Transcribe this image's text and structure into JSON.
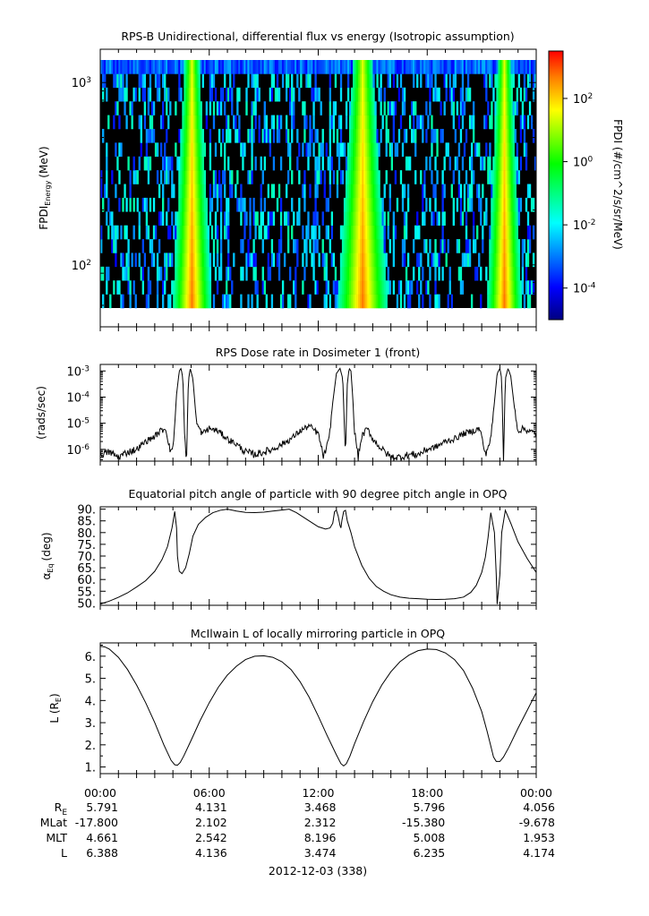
{
  "chart_data": [
    {
      "type": "heatmap",
      "title": "RPS-B  Unidirectional, differential flux vs energy (Isotropic assumption)",
      "ylabel": "FPDI",
      "ylabel_sub": "Energy",
      "ylabel_unit": "(MeV)",
      "yscale": "log",
      "ytick_labels": [
        {
          "value": 100,
          "label": "10",
          "exp": "2"
        },
        {
          "value": 1000,
          "label": "10",
          "exp": "3"
        }
      ],
      "energy_range_mev": [
        58,
        1330
      ],
      "colorbar": {
        "label": "FPDI (#/cm^2/s/sr/MeV)",
        "scale": "log",
        "range": [
          -5,
          3.5
        ],
        "ticks": [
          {
            "value": -4,
            "label": "10",
            "exp": "-4"
          },
          {
            "value": -2,
            "label": "10",
            "exp": "-2"
          },
          {
            "value": 0,
            "label": "10",
            "exp": "0"
          },
          {
            "value": 2,
            "label": "10",
            "exp": "2"
          }
        ]
      },
      "high_flux_bands_hours": [
        [
          4.0,
          6.1
        ],
        [
          13.1,
          15.8
        ],
        [
          21.3,
          23.2
        ]
      ],
      "colors": {
        "min": "#000080",
        "blue": "#0000ff",
        "cyan": "#00ffff",
        "green": "#00ff00",
        "yellow": "#ffff00",
        "max": "#ff0000",
        "background": "#000000"
      }
    },
    {
      "type": "line",
      "title": "RPS  Dose rate in Dosimeter 1 (front)",
      "ylabel": "(rads/sec)",
      "yscale": "log",
      "ylim_log10": [
        -6.45,
        -2.75
      ],
      "ytick_labels": [
        {
          "value": -6,
          "label": "10",
          "exp": "-6"
        },
        {
          "value": -5,
          "label": "10",
          "exp": "-5"
        },
        {
          "value": -4,
          "label": "10",
          "exp": "-4"
        },
        {
          "value": -3,
          "label": "10",
          "exp": "-3"
        }
      ],
      "x_hours": [
        0,
        0.5,
        1.0,
        1.5,
        2.0,
        2.5,
        3.0,
        3.3,
        3.6,
        3.9,
        4.05,
        4.2,
        4.35,
        4.45,
        4.55,
        4.65,
        4.75,
        4.85,
        4.95,
        5.1,
        5.3,
        5.6,
        6.0,
        6.5,
        7.0,
        7.5,
        8.0,
        8.5,
        9.0,
        9.5,
        10.0,
        10.5,
        11.0,
        11.5,
        12.0,
        12.3,
        12.6,
        12.8,
        13.0,
        13.2,
        13.35,
        13.5,
        13.6,
        13.7,
        13.8,
        13.9,
        14.0,
        14.2,
        14.4,
        14.7,
        15.0,
        15.5,
        16.0,
        16.5,
        17.0,
        17.5,
        18.0,
        18.5,
        19.0,
        19.5,
        20.0,
        20.5,
        20.9,
        21.2,
        21.5,
        21.7,
        21.85,
        22.0,
        22.1,
        22.2,
        22.3,
        22.45,
        22.6,
        22.8,
        23.0,
        23.3,
        23.6,
        24.0
      ],
      "y_log10": [
        -6.2,
        -6.1,
        -6.3,
        -6.1,
        -6.0,
        -5.7,
        -5.5,
        -5.3,
        -5.2,
        -6.2,
        -5.6,
        -3.9,
        -3.0,
        -2.9,
        -3.3,
        -5.6,
        -6.4,
        -3.4,
        -2.9,
        -3.3,
        -5.0,
        -5.4,
        -5.2,
        -5.3,
        -5.6,
        -5.8,
        -6.1,
        -6.2,
        -6.1,
        -6.0,
        -5.8,
        -5.6,
        -5.3,
        -5.1,
        -5.4,
        -6.3,
        -5.6,
        -4.2,
        -3.1,
        -2.9,
        -3.3,
        -6.3,
        -3.5,
        -2.9,
        -3.0,
        -4.0,
        -5.3,
        -6.3,
        -5.5,
        -5.2,
        -5.6,
        -6.0,
        -6.3,
        -6.3,
        -6.2,
        -6.2,
        -6.0,
        -5.9,
        -5.7,
        -5.6,
        -5.4,
        -5.3,
        -5.2,
        -6.2,
        -5.6,
        -4.2,
        -3.1,
        -2.9,
        -3.3,
        -6.4,
        -3.3,
        -2.9,
        -3.2,
        -4.4,
        -5.3,
        -5.2,
        -5.3,
        -5.4
      ],
      "noise_log10": 0.12
    },
    {
      "type": "line",
      "title": "Equatorial pitch angle of particle with 90 degree pitch angle in OPQ",
      "ylabel": "α",
      "ylabel_sub": "Eq",
      "ylabel_unit": "(deg)",
      "ylim": [
        49,
        91
      ],
      "yticks": [
        50,
        55,
        60,
        65,
        70,
        75,
        80,
        85,
        90
      ],
      "ytick_labels": [
        "50.",
        "55.",
        "60.",
        "65.",
        "70.",
        "75.",
        "80.",
        "85.",
        "90."
      ],
      "x_hours": [
        0,
        0.5,
        1.0,
        1.5,
        2.0,
        2.5,
        3.0,
        3.4,
        3.7,
        3.95,
        4.1,
        4.2,
        4.25,
        4.35,
        4.5,
        4.7,
        4.9,
        5.1,
        5.4,
        5.8,
        6.2,
        6.6,
        7.0,
        7.5,
        8.0,
        8.5,
        9.0,
        9.5,
        10.0,
        10.4,
        10.8,
        11.2,
        11.6,
        12.0,
        12.4,
        12.65,
        12.8,
        12.9,
        13.0,
        13.1,
        13.2,
        13.25,
        13.3,
        13.4,
        13.5,
        13.6,
        13.8,
        14.0,
        14.4,
        14.8,
        15.2,
        15.6,
        16.0,
        16.5,
        17.0,
        17.5,
        18.0,
        18.5,
        19.0,
        19.5,
        20.0,
        20.4,
        20.7,
        21.0,
        21.2,
        21.35,
        21.5,
        21.7,
        21.8,
        21.85,
        22.0,
        22.1,
        22.3,
        22.6,
        23.0,
        23.5,
        24.0
      ],
      "y": [
        49.5,
        50.8,
        52.4,
        54.3,
        56.8,
        59.5,
        63.5,
        68.5,
        74.0,
        82.0,
        89.0,
        82.0,
        70.0,
        63.5,
        62.5,
        65.0,
        71.0,
        78.5,
        83.5,
        86.5,
        88.5,
        89.5,
        90.0,
        89.2,
        88.6,
        88.5,
        88.7,
        89.2,
        89.6,
        90.0,
        88.5,
        86.5,
        84.5,
        82.5,
        81.5,
        82.0,
        84.0,
        89.0,
        89.5,
        87.0,
        83.0,
        82.0,
        85.0,
        89.0,
        89.5,
        85.0,
        80.0,
        74.0,
        66.0,
        60.5,
        57.0,
        55.0,
        53.5,
        52.5,
        52.0,
        51.8,
        51.6,
        51.5,
        51.6,
        51.8,
        52.5,
        54.5,
        57.5,
        63.0,
        69.5,
        78.0,
        88.5,
        80.0,
        62.0,
        49.5,
        62.0,
        80.0,
        89.5,
        84.0,
        76.0,
        69.0,
        63.0
      ]
    },
    {
      "type": "line",
      "title": "McIlwain L of locally mirroring particle in OPQ",
      "ylabel": "L (R",
      "ylabel_sub": "E",
      "ylabel_close": ")",
      "ylim": [
        0.7,
        6.6
      ],
      "yticks": [
        1,
        2,
        3,
        4,
        5,
        6
      ],
      "ytick_labels": [
        "1.",
        "2.",
        "3.",
        "4.",
        "5.",
        "6."
      ],
      "x_hours": [
        0,
        0.25,
        0.5,
        1.0,
        1.5,
        2.0,
        2.5,
        3.0,
        3.5,
        3.9,
        4.1,
        4.25,
        4.4,
        4.6,
        5.0,
        5.5,
        6.0,
        6.5,
        7.0,
        7.5,
        8.0,
        8.5,
        9.0,
        9.5,
        10.0,
        10.5,
        11.0,
        11.5,
        12.0,
        12.5,
        13.0,
        13.25,
        13.4,
        13.55,
        13.75,
        14.0,
        14.5,
        15.0,
        15.5,
        16.0,
        16.5,
        17.0,
        17.5,
        18.0,
        18.5,
        19.0,
        19.5,
        20.0,
        20.5,
        21.0,
        21.3,
        21.5,
        21.65,
        21.8,
        22.0,
        22.2,
        22.5,
        23.0,
        23.5,
        24.0
      ],
      "y": [
        6.45,
        6.42,
        6.32,
        5.95,
        5.4,
        4.7,
        3.9,
        3.0,
        2.0,
        1.3,
        1.1,
        1.08,
        1.2,
        1.5,
        2.2,
        3.1,
        3.9,
        4.6,
        5.15,
        5.55,
        5.85,
        6.0,
        6.02,
        5.95,
        5.75,
        5.4,
        4.85,
        4.15,
        3.3,
        2.4,
        1.55,
        1.15,
        1.05,
        1.15,
        1.5,
        2.05,
        3.05,
        3.95,
        4.7,
        5.3,
        5.75,
        6.05,
        6.25,
        6.32,
        6.3,
        6.15,
        5.85,
        5.35,
        4.55,
        3.5,
        2.6,
        1.95,
        1.45,
        1.25,
        1.25,
        1.45,
        1.9,
        2.75,
        3.55,
        4.35
      ]
    }
  ],
  "x_tick_labels": [
    "00:00",
    "06:00",
    "12:00",
    "18:00",
    "00:00"
  ],
  "ephemeris": {
    "rows": [
      {
        "label": "R",
        "sub": "E",
        "values": [
          "5.791",
          "4.131",
          "3.468",
          "5.796",
          "4.056"
        ]
      },
      {
        "label": "MLat",
        "sub": "",
        "values": [
          "-17.800",
          "2.102",
          "2.312",
          "-15.380",
          "-9.678"
        ]
      },
      {
        "label": "MLT",
        "sub": "",
        "values": [
          "4.661",
          "2.542",
          "8.196",
          "5.008",
          "1.953"
        ]
      },
      {
        "label": "L",
        "sub": "",
        "values": [
          "6.388",
          "4.136",
          "3.474",
          "6.235",
          "4.174"
        ]
      }
    ]
  },
  "date_label": "2012-12-03 (338)"
}
